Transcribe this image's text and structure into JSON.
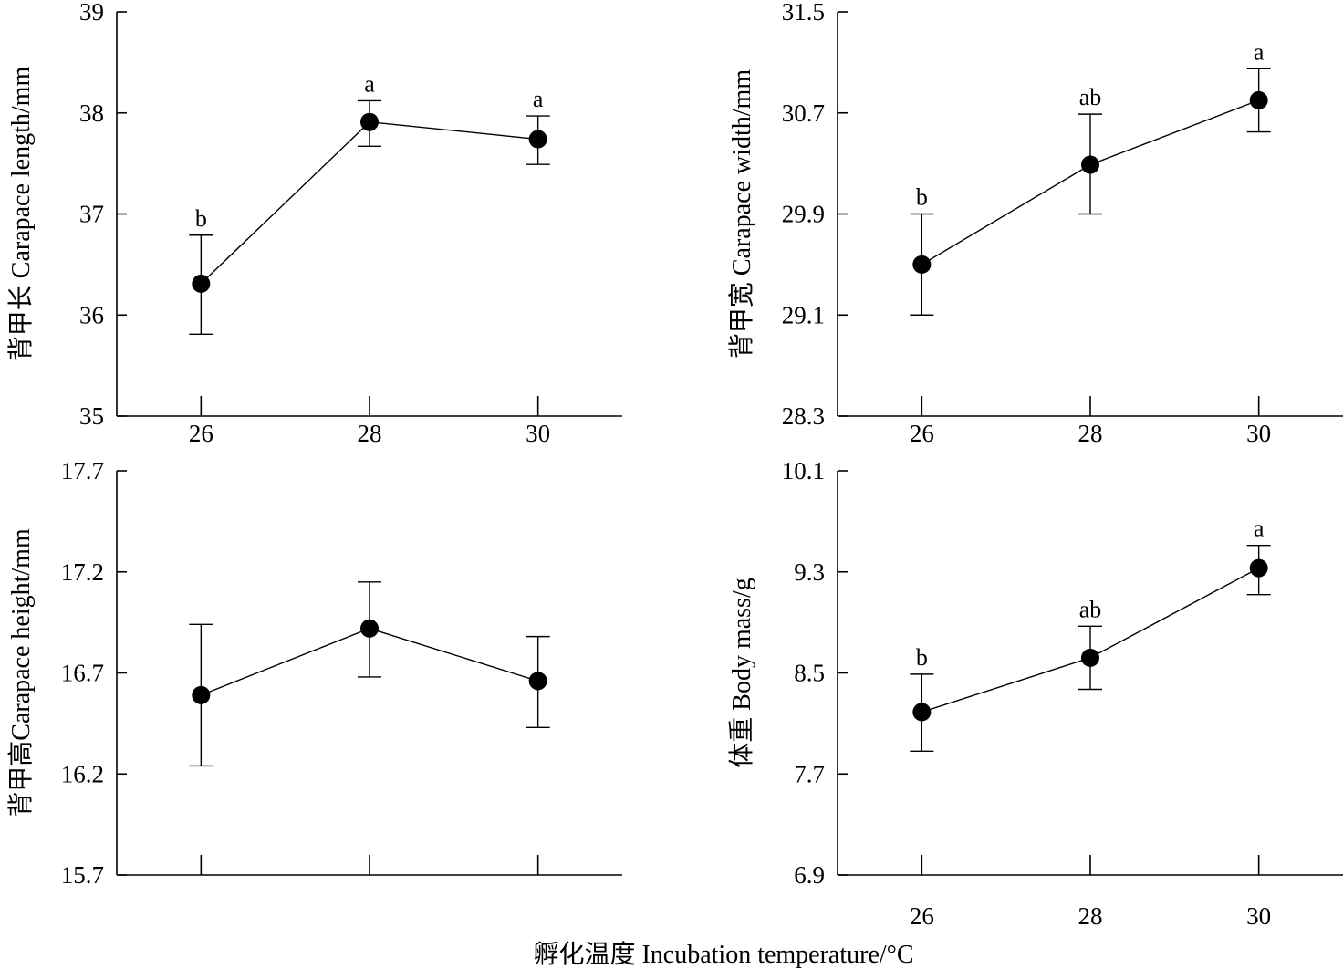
{
  "shared_xlabel": "孵化温度 Incubation temperature/°C",
  "chart_data": [
    {
      "type": "line",
      "id": "carapace-length",
      "ylabel": "背甲长 Carapace length/mm",
      "x": [
        26,
        28,
        30
      ],
      "xticks": [
        "26",
        "28",
        "30"
      ],
      "xlim": [
        25,
        31
      ],
      "ylim": [
        35,
        39
      ],
      "yticks": [
        "35",
        "36",
        "37",
        "38",
        "39"
      ],
      "series": [
        {
          "values": [
            36.31,
            37.91,
            37.74
          ],
          "err_low": [
            35.81,
            37.67,
            37.49
          ],
          "err_high": [
            36.79,
            38.12,
            37.97
          ]
        }
      ],
      "letters": [
        "b",
        "a",
        "a"
      ]
    },
    {
      "type": "line",
      "id": "carapace-width",
      "ylabel": "背甲宽 Carapace width/mm",
      "x": [
        26,
        28,
        30
      ],
      "xticks": [
        "26",
        "28",
        "30"
      ],
      "xlim": [
        25,
        31
      ],
      "ylim": [
        28.3,
        31.5
      ],
      "yticks": [
        "28.3",
        "29.1",
        "29.9",
        "30.7",
        "31.5"
      ],
      "series": [
        {
          "values": [
            29.5,
            30.29,
            30.8
          ],
          "err_low": [
            29.1,
            29.9,
            30.55
          ],
          "err_high": [
            29.9,
            30.69,
            31.05
          ]
        }
      ],
      "letters": [
        "b",
        "ab",
        "a"
      ]
    },
    {
      "type": "line",
      "id": "carapace-height",
      "ylabel": "背甲高Carapace height/mm",
      "x": [
        26,
        28,
        30
      ],
      "xticks": [
        "",
        "",
        ""
      ],
      "xlim": [
        25,
        31
      ],
      "ylim": [
        15.7,
        17.7
      ],
      "yticks": [
        "15.7",
        "16.2",
        "16.7",
        "17.2",
        "17.7"
      ],
      "series": [
        {
          "values": [
            16.59,
            16.92,
            16.66
          ],
          "err_low": [
            16.24,
            16.68,
            16.43
          ],
          "err_high": [
            16.94,
            17.15,
            16.88
          ]
        }
      ],
      "letters": [
        "",
        "",
        ""
      ]
    },
    {
      "type": "line",
      "id": "body-mass",
      "ylabel": "体重 Body mass/g",
      "x": [
        26,
        28,
        30
      ],
      "xticks": [
        "26",
        "28",
        "30"
      ],
      "xlim": [
        25,
        31
      ],
      "ylim": [
        6.9,
        10.1
      ],
      "yticks": [
        "6.9",
        "7.7",
        "8.5",
        "9.3",
        "10.1"
      ],
      "series": [
        {
          "values": [
            8.19,
            8.62,
            9.33
          ],
          "err_low": [
            7.88,
            8.37,
            9.12
          ],
          "err_high": [
            8.49,
            8.87,
            9.51
          ]
        }
      ],
      "letters": [
        "b",
        "ab",
        "a"
      ]
    }
  ]
}
